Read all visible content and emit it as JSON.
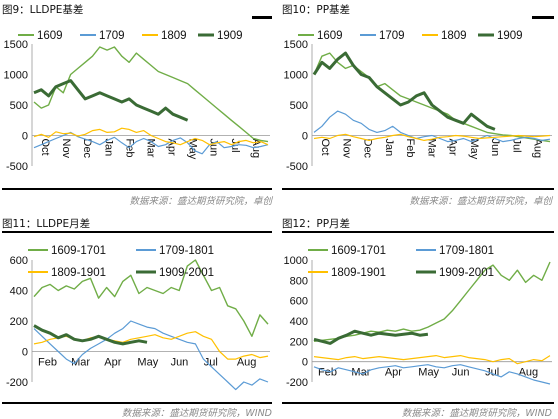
{
  "charts": [
    {
      "title": "图9：LLDPE基差",
      "source": "数据来源：盛达期货研究院，卓创",
      "chart_data": {
        "type": "line",
        "ylim": [
          -500,
          1500
        ],
        "yticks": [
          -500,
          0,
          500,
          1000,
          1500
        ],
        "xlabels": [
          "Oct",
          "Nov",
          "Dec",
          "Jan",
          "Feb",
          "Mar",
          "Apr",
          "May",
          "Jun",
          "Jul",
          "Aug"
        ],
        "xlabel_rotated": true,
        "series": [
          {
            "name": "1609",
            "color": "#70ad47",
            "width": 1.4,
            "values": [
              550,
              450,
              500,
              800,
              700,
              1000,
              1100,
              1200,
              1300,
              1450,
              1400,
              1450,
              1300,
              1200,
              1350,
              1250,
              1150,
              1050,
              1000,
              950,
              900,
              850,
              750,
              650,
              550,
              450,
              350,
              250,
              150,
              50,
              -50,
              -80,
              -100
            ]
          },
          {
            "name": "1709",
            "color": "#5b9bd5",
            "width": 1.2,
            "values": [
              -200,
              -150,
              -100,
              -50,
              0,
              50,
              -20,
              -60,
              -100,
              -150,
              -80,
              -30,
              -120,
              -200,
              -100,
              -50,
              -100,
              -180,
              -150,
              -80,
              -40,
              -120,
              -250,
              -300,
              -150,
              -100,
              -200,
              -180,
              -150,
              -160,
              -200,
              -180,
              -150
            ]
          },
          {
            "name": "1809",
            "color": "#ffc000",
            "width": 1.2,
            "values": [
              -20,
              20,
              -30,
              60,
              30,
              40,
              -10,
              20,
              80,
              100,
              50,
              60,
              120,
              100,
              50,
              80,
              0,
              -50,
              -100,
              -120,
              -150,
              -100,
              -50,
              -80,
              -150,
              -120,
              -100,
              -150,
              -100,
              -80,
              -120,
              -100,
              -150
            ]
          },
          {
            "name": "1909",
            "color": "#3a6b35",
            "width": 3.0,
            "values": [
              700,
              750,
              650,
              800,
              850,
              900,
              750,
              600,
              650,
              700,
              650,
              600,
              550,
              600,
              500,
              450,
              400,
              350,
              450,
              350,
              300,
              250
            ]
          }
        ]
      }
    },
    {
      "title": "图10：PP基差",
      "source": "数据来源：盛达期货研究院，卓创",
      "chart_data": {
        "type": "line",
        "ylim": [
          -500,
          1500
        ],
        "yticks": [
          -500,
          0,
          500,
          1000,
          1500
        ],
        "xlabels": [
          "Oct",
          "Nov",
          "Dec",
          "Jan",
          "Feb",
          "Mar",
          "Apr",
          "May",
          "Jun",
          "Jul",
          "Aug"
        ],
        "xlabel_rotated": true,
        "series": [
          {
            "name": "1609",
            "color": "#70ad47",
            "width": 1.4,
            "values": [
              1000,
              1300,
              1350,
              1200,
              1100,
              1150,
              1050,
              950,
              800,
              850,
              750,
              650,
              600,
              550,
              500,
              450,
              400,
              350,
              250,
              200,
              150,
              100,
              50,
              30,
              10,
              0,
              -20,
              -40,
              -60,
              -80,
              -100
            ]
          },
          {
            "name": "1709",
            "color": "#5b9bd5",
            "width": 1.2,
            "values": [
              50,
              150,
              300,
              400,
              350,
              250,
              200,
              100,
              50,
              80,
              150,
              50,
              0,
              -50,
              -20,
              0,
              -50,
              -100,
              -80,
              -50,
              -100,
              -50,
              0,
              -50,
              -100,
              -80,
              -50,
              -30,
              -50,
              -80,
              -60
            ]
          },
          {
            "name": "1809",
            "color": "#ffc000",
            "width": 1.2,
            "values": [
              -50,
              -30,
              -50,
              0,
              20,
              -20,
              -50,
              -80,
              -50,
              -30,
              0,
              20,
              -20,
              -50,
              -80,
              -60,
              -30,
              -20,
              0,
              -10,
              -30,
              -50,
              -40,
              -30,
              -20,
              -10,
              0,
              -10,
              -20,
              -10,
              0
            ]
          },
          {
            "name": "1909",
            "color": "#3a6b35",
            "width": 3.0,
            "values": [
              1000,
              1200,
              1100,
              1250,
              1350,
              1150,
              1000,
              950,
              800,
              700,
              600,
              500,
              550,
              650,
              700,
              500,
              400,
              300,
              250,
              200,
              350,
              250,
              150,
              100
            ]
          }
        ]
      }
    },
    {
      "title": "图11：LLDPE月差",
      "source": "数据来源：盛达期货研究院，WIND",
      "chart_data": {
        "type": "line",
        "ylim": [
          -200,
          600
        ],
        "yticks": [
          -200,
          0,
          200,
          400,
          600
        ],
        "xlabels": [
          "Feb",
          "Mar",
          "Apr",
          "May",
          "Jun",
          "Jul",
          "Aug"
        ],
        "xlabel_rotated": false,
        "series": [
          {
            "name": "1609-1701",
            "color": "#70ad47",
            "width": 1.4,
            "values": [
              360,
              420,
              440,
              400,
              430,
              410,
              460,
              480,
              350,
              420,
              360,
              460,
              500,
              380,
              420,
              400,
              380,
              420,
              400,
              560,
              600,
              500,
              400,
              420,
              300,
              280,
              200,
              100,
              240,
              180
            ]
          },
          {
            "name": "1709-1801",
            "color": "#5b9bd5",
            "width": 1.2,
            "values": [
              150,
              100,
              50,
              0,
              -50,
              -80,
              -20,
              20,
              50,
              80,
              120,
              150,
              200,
              180,
              160,
              150,
              120,
              100,
              80,
              60,
              50,
              -50,
              -100,
              -150,
              -200,
              -250,
              -200,
              -220,
              -180,
              -200
            ]
          },
          {
            "name": "1809-1901",
            "color": "#ffc000",
            "width": 1.2,
            "values": [
              50,
              60,
              80,
              90,
              100,
              80,
              70,
              90,
              100,
              80,
              70,
              60,
              80,
              90,
              100,
              110,
              90,
              80,
              100,
              120,
              130,
              100,
              80,
              0,
              -50,
              -50,
              -30,
              -20,
              -40,
              -30
            ]
          },
          {
            "name": "1909-2001",
            "color": "#3a6b35",
            "width": 3.0,
            "values": [
              170,
              140,
              120,
              90,
              110,
              80,
              70,
              80,
              100,
              80,
              60,
              50,
              60,
              70,
              60
            ]
          }
        ]
      }
    },
    {
      "title": "图12：PP月差",
      "source": "数据来源：盛达期货研究院，WIND",
      "chart_data": {
        "type": "line",
        "ylim": [
          -200,
          1000
        ],
        "yticks": [
          -200,
          0,
          200,
          400,
          600,
          800,
          1000
        ],
        "xlabels": [
          "Feb",
          "Mar",
          "Apr",
          "May",
          "Jun",
          "Jul",
          "Aug"
        ],
        "xlabel_rotated": false,
        "series": [
          {
            "name": "1609-1701",
            "color": "#70ad47",
            "width": 1.4,
            "values": [
              200,
              210,
              220,
              230,
              250,
              260,
              280,
              300,
              290,
              310,
              300,
              320,
              300,
              310,
              340,
              380,
              420,
              500,
              600,
              700,
              800,
              900,
              950,
              850,
              800,
              900,
              780,
              850,
              800,
              980
            ]
          },
          {
            "name": "1709-1801",
            "color": "#5b9bd5",
            "width": 1.2,
            "values": [
              -50,
              -80,
              -100,
              -60,
              -80,
              -100,
              -120,
              -80,
              -60,
              -50,
              -40,
              -60,
              -50,
              -40,
              -30,
              -50,
              -60,
              -40,
              -30,
              -50,
              -70,
              -90,
              -120,
              -150,
              -100,
              -120,
              -150,
              -180,
              -200,
              -220
            ]
          },
          {
            "name": "1809-1901",
            "color": "#ffc000",
            "width": 1.2,
            "values": [
              50,
              40,
              30,
              20,
              40,
              50,
              30,
              40,
              50,
              40,
              30,
              20,
              30,
              40,
              50,
              60,
              40,
              50,
              60,
              40,
              30,
              20,
              0,
              20,
              30,
              -20,
              0,
              20,
              10,
              60
            ]
          },
          {
            "name": "1909-2001",
            "color": "#3a6b35",
            "width": 3.0,
            "values": [
              220,
              200,
              180,
              230,
              260,
              300,
              280,
              260,
              280,
              270,
              260,
              270,
              280,
              260,
              270
            ]
          }
        ]
      }
    }
  ]
}
